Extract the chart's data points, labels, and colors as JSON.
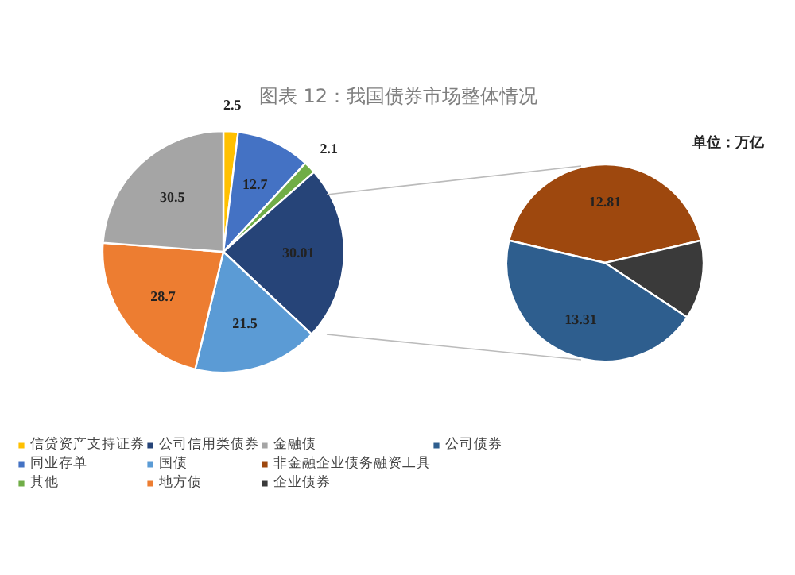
{
  "chart_data": [
    {
      "type": "pie",
      "title": "图表 12：我国债券市场整体情况",
      "categories": [
        "信贷资产支持证券",
        "同业存单",
        "其他",
        "公司信用类债券",
        "国债",
        "地方债",
        "金融债"
      ],
      "values": [
        2.5,
        12.7,
        2.1,
        30.01,
        21.5,
        28.7,
        30.5
      ],
      "colors": [
        "#ffc000",
        "#4472c4",
        "#70ad47",
        "#264478",
        "#5b9bd5",
        "#ed7d31",
        "#a5a5a5"
      ],
      "data_labels": true,
      "legend": "bottom"
    },
    {
      "type": "pie",
      "categories": [
        "非金融企业债务融资工具",
        "企业债券",
        "公司债券"
      ],
      "values": [
        12.81,
        3.89,
        13.31
      ],
      "colors": [
        "#9e480e",
        "#3a3a3a",
        "#2e5e8e"
      ],
      "value_labels": [
        "12.81",
        null,
        "13.31"
      ],
      "annotations": [
        "单位：万亿"
      ],
      "legend": "bottom"
    }
  ]
}
